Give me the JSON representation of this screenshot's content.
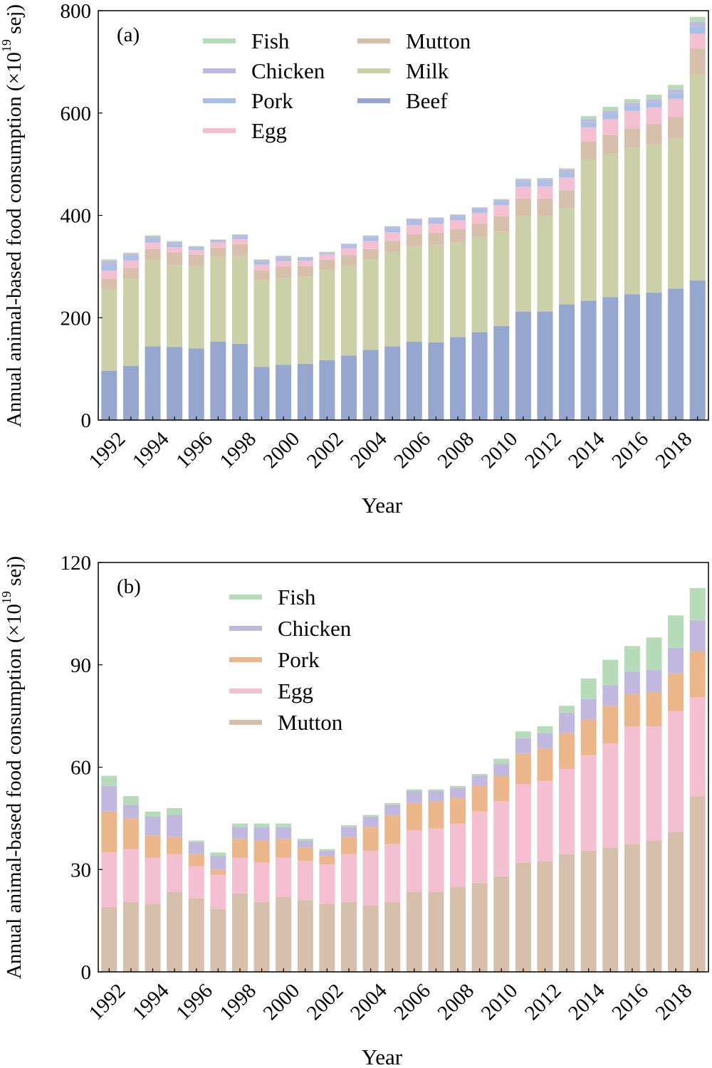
{
  "chart_data": [
    {
      "type": "bar",
      "stacked": true,
      "panel_label": "(a)",
      "xlabel": "Year",
      "ylabel_prefix": "Annual animal-based food consumption (×10",
      "ylabel_exp": "19",
      "ylabel_suffix": " sej)",
      "ylim": [
        0,
        800
      ],
      "yticks": [
        "0",
        "200",
        "400",
        "600",
        "800"
      ],
      "ytick_values": [
        0,
        200,
        400,
        600,
        800
      ],
      "grid": false,
      "legend_position": "top-left",
      "categories": [
        1992,
        1993,
        1994,
        1995,
        1996,
        1997,
        1998,
        1999,
        2000,
        2001,
        2002,
        2003,
        2004,
        2005,
        2006,
        2007,
        2008,
        2009,
        2010,
        2011,
        2012,
        2013,
        2014,
        2015,
        2016,
        2017,
        2018,
        2019
      ],
      "xtick_labels": [
        "1992",
        "1994",
        "1996",
        "1998",
        "2000",
        "2002",
        "2004",
        "2006",
        "2008",
        "2010",
        "2012",
        "2014",
        "2016",
        "2018"
      ],
      "legend_order": [
        "Fish",
        "Chicken",
        "Pork",
        "Egg",
        "Mutton",
        "Milk",
        "Beef"
      ],
      "series": [
        {
          "name": "Beef",
          "color": "#95a6cf",
          "values": [
            96,
            106,
            144,
            143,
            140,
            153,
            149,
            104,
            108,
            110,
            117,
            126,
            137,
            144,
            153,
            152,
            162,
            172,
            184,
            212,
            212,
            226,
            233,
            240,
            246,
            249,
            257,
            273
          ]
        },
        {
          "name": "Milk",
          "color": "#ccd0a8",
          "values": [
            160,
            170,
            169,
            160,
            162,
            166,
            172,
            169,
            170,
            170,
            176,
            175,
            177,
            185,
            186,
            191,
            186,
            186,
            186,
            188,
            188,
            188,
            276,
            280,
            286,
            290,
            294,
            402
          ]
        },
        {
          "name": "Mutton",
          "color": "#d6bfab",
          "values": [
            20,
            21,
            21,
            24,
            21,
            18,
            23,
            20,
            22,
            21,
            20,
            21,
            20,
            21,
            24,
            23,
            25,
            26,
            28,
            33,
            33,
            35,
            35,
            37,
            38,
            39,
            41,
            51
          ]
        },
        {
          "name": "Egg",
          "color": "#f5bfd2",
          "values": [
            16,
            15,
            13,
            11,
            9,
            10,
            10,
            11,
            11,
            11,
            11,
            14,
            16,
            17,
            18,
            18,
            18,
            21,
            22,
            23,
            24,
            25,
            28,
            31,
            34,
            33,
            36,
            29
          ]
        },
        {
          "name": "Pork",
          "color": "#a8bfe6",
          "values": [
            12,
            9,
            7,
            5,
            3,
            2,
            4,
            5,
            5,
            3,
            2,
            5,
            7,
            8,
            8,
            8,
            7,
            7,
            7,
            9,
            9,
            10,
            10,
            11,
            10,
            10,
            11,
            14
          ]
        },
        {
          "name": "Chicken",
          "color": "#c1b8e0",
          "values": [
            7,
            4,
            5,
            5,
            4,
            3,
            4,
            4,
            4,
            3,
            2,
            3,
            3,
            3,
            4,
            3,
            3,
            3,
            3,
            5,
            5,
            6,
            6,
            6,
            6,
            6,
            7,
            9
          ]
        },
        {
          "name": "Fish",
          "color": "#b5dbb8",
          "values": [
            3,
            2,
            2,
            2,
            1,
            1,
            1,
            1,
            1,
            1,
            1,
            1,
            1,
            1,
            1,
            1,
            1,
            1,
            2,
            2,
            2,
            2,
            6,
            7,
            7,
            9,
            9,
            10
          ]
        }
      ]
    },
    {
      "type": "bar",
      "stacked": true,
      "panel_label": "(b)",
      "xlabel": "Year",
      "ylabel_prefix": "Annual animal-based food consumption (×10",
      "ylabel_exp": "19",
      "ylabel_suffix": " sej)",
      "ylim": [
        0,
        120
      ],
      "yticks": [
        "0",
        "30",
        "60",
        "90",
        "120"
      ],
      "ytick_values": [
        0,
        30,
        60,
        90,
        120
      ],
      "grid": false,
      "legend_position": "top-left",
      "categories": [
        1992,
        1993,
        1994,
        1995,
        1996,
        1997,
        1998,
        1999,
        2000,
        2001,
        2002,
        2003,
        2004,
        2005,
        2006,
        2007,
        2008,
        2009,
        2010,
        2011,
        2012,
        2013,
        2014,
        2015,
        2016,
        2017,
        2018,
        2019
      ],
      "xtick_labels": [
        "1992",
        "1994",
        "1996",
        "1998",
        "2000",
        "2002",
        "2004",
        "2006",
        "2008",
        "2010",
        "2012",
        "2014",
        "2016",
        "2018"
      ],
      "legend_order": [
        "Fish",
        "Chicken",
        "Pork",
        "Egg",
        "Mutton"
      ],
      "series": [
        {
          "name": "Mutton",
          "color": "#d6bfab",
          "values": [
            19,
            20.5,
            20,
            23.5,
            21.5,
            18.5,
            23,
            20.5,
            22,
            21,
            20,
            20.5,
            19.5,
            20.5,
            23.5,
            23.5,
            25,
            26,
            28,
            32,
            32.5,
            34.5,
            35.5,
            36.5,
            37.5,
            38.5,
            41,
            51.5
          ]
        },
        {
          "name": "Egg",
          "color": "#f5bfd2",
          "values": [
            16,
            15.5,
            13.5,
            11,
            9.5,
            10,
            10.5,
            11.5,
            11.5,
            11.5,
            11.5,
            14,
            16,
            17,
            18,
            18.5,
            18.5,
            21,
            22,
            23,
            23.5,
            25,
            28,
            30.5,
            34.5,
            33.5,
            35.5,
            29
          ]
        },
        {
          "name": "Pork",
          "color": "#ebb689",
          "values": [
            12,
            9,
            6.5,
            5,
            3.5,
            1.5,
            5.5,
            6.5,
            5.5,
            4,
            2.5,
            5,
            7,
            8.5,
            8,
            8,
            7.5,
            7.5,
            7.5,
            9,
            9.5,
            10.5,
            10.5,
            11,
            9.5,
            10,
            11,
            13.5
          ]
        },
        {
          "name": "Chicken",
          "color": "#c1b8e0",
          "values": [
            7.5,
            4,
            5.5,
            6.5,
            3.5,
            4,
            3.5,
            4,
            3.5,
            2,
            1.5,
            3,
            3,
            3,
            3.5,
            3,
            3,
            3,
            3.5,
            4.5,
            4.5,
            6,
            6,
            6,
            6.5,
            6.5,
            7.5,
            9
          ]
        },
        {
          "name": "Fish",
          "color": "#b5dbb8",
          "values": [
            3,
            2.5,
            1.5,
            2,
            0.5,
            1,
            1,
            1,
            1,
            0.5,
            0.5,
            0.5,
            0.5,
            0.5,
            0.5,
            0.5,
            0.5,
            0.5,
            1.5,
            2,
            2,
            2,
            6,
            7.5,
            7.5,
            9.5,
            9.5,
            9.5
          ]
        }
      ]
    }
  ]
}
